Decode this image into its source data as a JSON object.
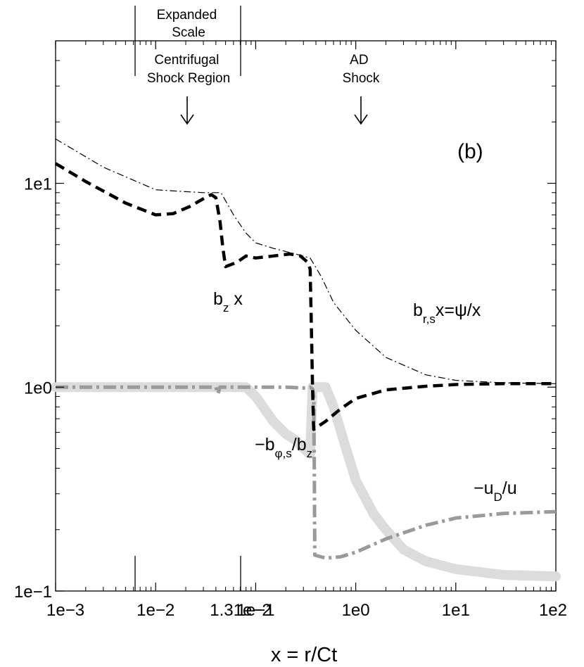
{
  "chart_data": {
    "type": "line",
    "panel_label": "(b)",
    "xlabel": "x = r/Ct",
    "ylabel": "",
    "xscale": "log",
    "yscale": "log",
    "xlim": [
      0.001,
      100
    ],
    "ylim": [
      0.1,
      50
    ],
    "grid": false,
    "x_tick_labels": [
      "1e−3",
      "1e−2",
      "1.31e−2",
      "1e−1",
      "1e0",
      "1e1",
      "1e2"
    ],
    "y_tick_labels": [
      "1e−1",
      "1e0",
      "1e1"
    ],
    "annotations": {
      "expanded_scale": "Expanded\nScale",
      "centrifugal_shock": "Centrifugal\nShock Region",
      "ad_shock": "AD\nShock",
      "arrow_glyph": "↓"
    },
    "series": [
      {
        "name": "b_z x",
        "label_main": "b",
        "label_sub": "z",
        "label_tail": " x",
        "style": "thick-dashed",
        "color": "#000000",
        "points": [
          [
            0.001,
            12.5
          ],
          [
            0.002,
            10.2
          ],
          [
            0.005,
            8.0
          ],
          [
            0.01,
            7.0
          ],
          [
            0.015,
            7.1
          ],
          [
            0.022,
            7.7
          ],
          [
            0.03,
            8.4
          ],
          [
            0.036,
            8.8
          ],
          [
            0.04,
            8.5
          ],
          [
            0.044,
            6.5
          ],
          [
            0.047,
            4.8
          ],
          [
            0.05,
            3.9
          ],
          [
            0.065,
            4.1
          ],
          [
            0.08,
            4.4
          ],
          [
            0.1,
            4.3
          ],
          [
            0.15,
            4.4
          ],
          [
            0.22,
            4.5
          ],
          [
            0.28,
            4.4
          ],
          [
            0.33,
            4.1
          ],
          [
            0.35,
            3.8
          ],
          [
            0.36,
            2.0
          ],
          [
            0.37,
            1.0
          ],
          [
            0.38,
            0.62
          ],
          [
            0.5,
            0.68
          ],
          [
            0.7,
            0.78
          ],
          [
            1.0,
            0.88
          ],
          [
            2.0,
            0.97
          ],
          [
            5.0,
            1.01
          ],
          [
            10,
            1.03
          ],
          [
            30,
            1.04
          ],
          [
            100,
            1.04
          ]
        ]
      },
      {
        "name": "b_r,s x=ψ/x",
        "label_main": "b",
        "label_sub": "r,s",
        "label_tail": "x=ψ/x",
        "style": "thin-dashdot",
        "color": "#000000",
        "points": [
          [
            0.001,
            16.5
          ],
          [
            0.003,
            12.0
          ],
          [
            0.01,
            9.3
          ],
          [
            0.02,
            9.1
          ],
          [
            0.03,
            9.0
          ],
          [
            0.045,
            9.0
          ],
          [
            0.06,
            7.0
          ],
          [
            0.08,
            5.7
          ],
          [
            0.1,
            5.1
          ],
          [
            0.15,
            4.8
          ],
          [
            0.25,
            4.5
          ],
          [
            0.35,
            4.3
          ],
          [
            0.45,
            3.5
          ],
          [
            0.6,
            2.6
          ],
          [
            1.0,
            1.9
          ],
          [
            2.0,
            1.4
          ],
          [
            5.0,
            1.15
          ],
          [
            10,
            1.08
          ],
          [
            30,
            1.05
          ],
          [
            100,
            1.04
          ]
        ]
      },
      {
        "name": "−b_φ,s/b_z",
        "label_main": "−b",
        "label_sub": "φ,s",
        "label_tail": "/b",
        "label_sub2": "z",
        "style": "thick-gray-dashdot",
        "color": "#9a9a9a",
        "points": [
          [
            0.001,
            1.0
          ],
          [
            0.04,
            1.0
          ],
          [
            0.042,
            0.93
          ],
          [
            0.044,
            1.0
          ],
          [
            0.1,
            1.0
          ],
          [
            0.2,
            1.0
          ],
          [
            0.3,
            0.99
          ],
          [
            0.35,
            1.0
          ],
          [
            0.37,
            0.98
          ],
          [
            0.38,
            0.9
          ],
          [
            0.385,
            0.4
          ],
          [
            0.39,
            0.15
          ],
          [
            0.5,
            0.145
          ],
          [
            0.7,
            0.147
          ],
          [
            1.0,
            0.155
          ],
          [
            2.0,
            0.18
          ],
          [
            5.0,
            0.21
          ],
          [
            10,
            0.228
          ],
          [
            30,
            0.24
          ],
          [
            100,
            0.245
          ]
        ]
      },
      {
        "name": "−u_D/u",
        "label_main": "−u",
        "label_sub": "D",
        "label_tail": "/u",
        "style": "very-thick-light-gray-solid",
        "color": "#dcdcdc",
        "points": [
          [
            0.001,
            1.0
          ],
          [
            0.05,
            1.0
          ],
          [
            0.08,
            1.0
          ],
          [
            0.1,
            0.9
          ],
          [
            0.15,
            0.68
          ],
          [
            0.2,
            0.59
          ],
          [
            0.25,
            0.55
          ],
          [
            0.3,
            0.5
          ],
          [
            0.35,
            0.47
          ],
          [
            0.37,
            1.0
          ],
          [
            0.4,
            1.0
          ],
          [
            0.5,
            1.0
          ],
          [
            0.6,
            0.8
          ],
          [
            0.8,
            0.5
          ],
          [
            1.0,
            0.35
          ],
          [
            1.5,
            0.24
          ],
          [
            2.0,
            0.2
          ],
          [
            3.0,
            0.16
          ],
          [
            5.0,
            0.14
          ],
          [
            10,
            0.128
          ],
          [
            30,
            0.12
          ],
          [
            100,
            0.118
          ]
        ]
      }
    ]
  }
}
